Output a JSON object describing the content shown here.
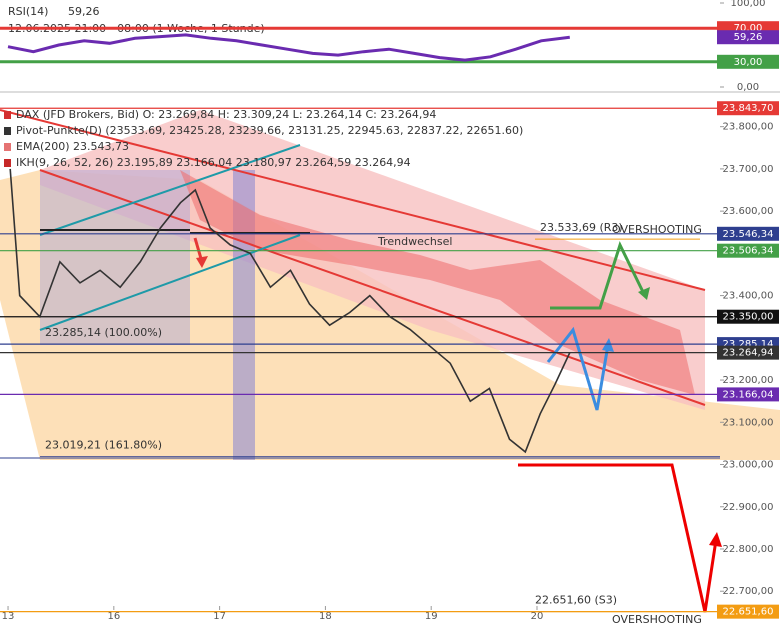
{
  "chart_data": [
    {
      "type": "line",
      "title": "RSI(14)",
      "subtitle": "12.06.2025 21:00 - 08:00  (1 Woche, 1 Stunde)",
      "x": [
        0,
        0.24,
        0.48,
        0.72,
        0.96,
        1.2,
        1.44,
        1.68,
        1.92,
        2.16,
        2.4,
        2.64,
        2.88,
        3.12,
        3.36,
        3.6,
        3.84,
        4.08,
        4.32,
        4.56,
        4.8,
        5.04,
        5.31
      ],
      "series": [
        {
          "name": "RSI(14)",
          "color": "#6a2bb0",
          "values": [
            48,
            42,
            50,
            55,
            52,
            58,
            60,
            62,
            58,
            55,
            50,
            45,
            40,
            38,
            42,
            45,
            40,
            35,
            32,
            36,
            45,
            55,
            59.26
          ],
          "value_labels": [
            null,
            null,
            null,
            null,
            null,
            null,
            null,
            null,
            null,
            null,
            null,
            null,
            null,
            null,
            null,
            null,
            null,
            null,
            null,
            null,
            null,
            null,
            "59,26"
          ]
        }
      ],
      "xlim": [
        -0.076,
        6.73
      ],
      "ylim": [
        0,
        100
      ],
      "yticks": [
        {
          "value": 100,
          "label": "100,00"
        },
        {
          "value": 0,
          "label": "0,00"
        }
      ],
      "levels": [
        {
          "value": 70,
          "label": "70,00",
          "color": "#e53935"
        },
        {
          "value": 30,
          "label": "30,00",
          "color": "#43a047"
        }
      ]
    },
    {
      "type": "line",
      "legend": [
        "DAX (JFD Brokers, Bid)  O: 23.269,84  H: 23.309,24  L: 23.264,14  C: 23.264,94",
        "Pivot-Punkte(D)  (23533.69, 23425.28, 23239.66, 23131.25, 22945.63, 22837.22, 22651.60)",
        "EMA(200)  23.543,73",
        "IKH(9, 26, 52, 26)  23.195,89  23.166,04  23.180,97  23.264,59  23.264,94"
      ],
      "x": [
        0.02,
        0.11,
        0.3,
        0.49,
        0.68,
        0.87,
        1.06,
        1.25,
        1.44,
        1.63,
        1.77,
        1.91,
        2.1,
        2.29,
        2.48,
        2.67,
        2.85,
        3.04,
        3.23,
        3.42,
        3.61,
        3.8,
        3.99,
        4.18,
        4.37,
        4.55,
        4.74,
        4.89,
        5.03,
        5.17,
        5.31
      ],
      "series": [
        {
          "name": "DAX",
          "color": "#333333",
          "values": [
            23700,
            23400,
            23350,
            23480,
            23430,
            23460,
            23420,
            23480,
            23560,
            23620,
            23650,
            23560,
            23520,
            23500,
            23420,
            23460,
            23380,
            23330,
            23360,
            23400,
            23350,
            23320,
            23280,
            23240,
            23150,
            23180,
            23060,
            23030,
            23120,
            23190,
            23265
          ]
        }
      ],
      "xlim": [
        -0.076,
        6.73
      ],
      "ylim": [
        22620,
        23875
      ],
      "xticks": [
        {
          "value": 0,
          "label": "13"
        },
        {
          "value": 1,
          "label": "16"
        },
        {
          "value": 2,
          "label": "17"
        },
        {
          "value": 3,
          "label": "18"
        },
        {
          "value": 4,
          "label": "19"
        },
        {
          "value": 5,
          "label": "20"
        }
      ],
      "yticks": [
        {
          "value": 23800,
          "label": "23.800,00"
        },
        {
          "value": 23700,
          "label": "23.700,00"
        },
        {
          "value": 23600,
          "label": "23.600,00"
        },
        {
          "value": 23400,
          "label": "23.400,00"
        },
        {
          "value": 23200,
          "label": "23.200,00"
        },
        {
          "value": 23100,
          "label": "23.100,00"
        },
        {
          "value": 23000,
          "label": "23.000,00"
        },
        {
          "value": 22900,
          "label": "22.900,00"
        },
        {
          "value": 22800,
          "label": "22.800,00"
        },
        {
          "value": 22700,
          "label": "22.700,00"
        }
      ],
      "levels": [
        {
          "value": 23843.7,
          "label": "23.843,70",
          "color": "#e53935"
        },
        {
          "value": 23546.34,
          "label": "23.546,34",
          "color": "#2e3f8f"
        },
        {
          "value": 23506.34,
          "label": "23.506,34",
          "color": "#43a047"
        },
        {
          "value": 23350,
          "label": "23.350,00",
          "color": "#111111"
        },
        {
          "value": 23285.14,
          "label": "23.285,14",
          "color": "#2e3f8f"
        },
        {
          "value": 23264.94,
          "label": "23.264,94",
          "color": "#333333"
        },
        {
          "value": 23166.04,
          "label": "23.166,04",
          "color": "#6a2bb0"
        },
        {
          "value": 22651.6,
          "label": "22.651,60",
          "color": "#f39c12"
        }
      ],
      "annotations": [
        {
          "text": "23.533,69 (R3)",
          "value": 23533.69
        },
        {
          "text": "23.285,14 (100.00%)",
          "value": 23285.14
        },
        {
          "text": "23.019,21 (161.80%)",
          "value": 23019.21
        },
        {
          "text": "22.651,60 (S3)",
          "value": 22651.6
        },
        {
          "text": "Trendwechsel"
        },
        {
          "text": "OVERSHOOTING"
        },
        {
          "text": "OVERSHOOTING"
        }
      ]
    }
  ]
}
